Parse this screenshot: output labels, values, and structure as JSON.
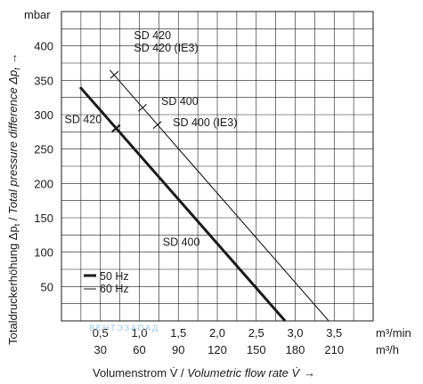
{
  "chart_data": {
    "type": "line",
    "y_unit": "mbar",
    "ylim": [
      0,
      450
    ],
    "y_ticks": [
      "50",
      "100",
      "150",
      "200",
      "250",
      "300",
      "350",
      "400"
    ],
    "x_unit_min": "m³/min",
    "x_unit_h": "m³/h",
    "xlim": [
      0,
      4.0
    ],
    "x_ticks_min": [
      "0,5",
      "1,0",
      "1,5",
      "2,0",
      "2,5",
      "3,0",
      "3,5"
    ],
    "x_ticks_h": [
      "30",
      "60",
      "90",
      "120",
      "150",
      "180",
      "210"
    ],
    "ylabel_de": "Totaldruckerhöhung Δp",
    "ylabel_sub": "t",
    "ylabel_en": "Total pressure difference Δp",
    "xlabel_de": "Volumenstrom V̇ / ",
    "xlabel_en": "Volumetric flow rate V̇",
    "arrow": "→",
    "grid": true,
    "legend_placement": "bottom-left",
    "legend": [
      {
        "label": "50 Hz",
        "style": "thick"
      },
      {
        "label": "60 Hz",
        "style": "thin"
      }
    ],
    "series": [
      {
        "name": "50 Hz",
        "style": "thick",
        "x": [
          0.24,
          2.87
        ],
        "y": [
          340,
          0
        ]
      },
      {
        "name": "60 Hz",
        "style": "thin",
        "x": [
          0.62,
          3.43
        ],
        "y": [
          365,
          0
        ]
      }
    ],
    "markers": [
      {
        "series": "50 Hz",
        "x": 0.7,
        "y": 280
      },
      {
        "series": "60 Hz",
        "x": 0.68,
        "y": 358
      },
      {
        "series": "60 Hz",
        "x": 1.04,
        "y": 310
      },
      {
        "series": "60 Hz",
        "x": 1.23,
        "y": 285
      }
    ],
    "annotations": [
      {
        "text": "SD 420",
        "x": 0.93,
        "y": 410
      },
      {
        "text": "SD 420 (IE3)",
        "x": 0.93,
        "y": 392
      },
      {
        "text": "SD 400",
        "x": 1.28,
        "y": 314
      },
      {
        "text": "SD 400 (IE3)",
        "x": 1.43,
        "y": 283
      },
      {
        "text": "SD 420",
        "x": 0.04,
        "y": 288
      },
      {
        "text": "SD 400",
        "x": 1.3,
        "y": 109
      }
    ],
    "watermark": "ВЕНТЭЗАПАД"
  }
}
